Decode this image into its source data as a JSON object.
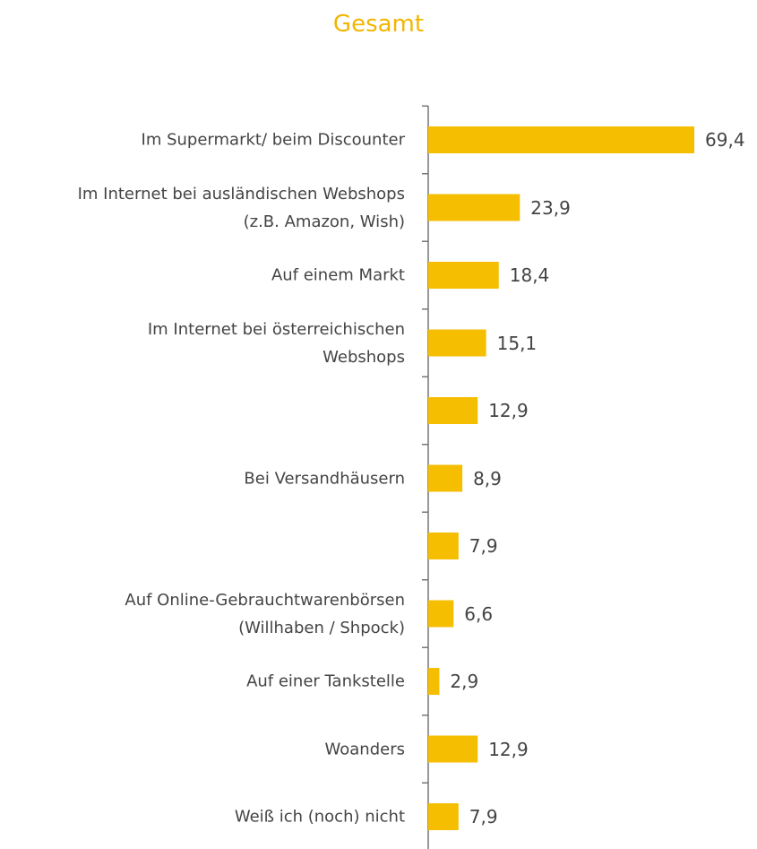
{
  "chart_data": {
    "type": "bar",
    "orientation": "horizontal",
    "title": "Gesamt",
    "categories": [
      "Im Supermarkt/ beim Discounter",
      "Im Internet bei ausländischen Webshops\n(z.B. Amazon, Wish)",
      "Auf einem Markt",
      "Im Internet bei österreichischen\nWebshops",
      null,
      "Bei Versandhäusern",
      null,
      "Auf Online-Gebrauchtwarenbörsen\n(Willhaben / Shpock)",
      "Auf einer Tankstelle",
      "Woanders",
      "Weiß ich (noch) nicht"
    ],
    "values": [
      69.4,
      23.9,
      18.4,
      15.1,
      12.9,
      8.9,
      7.9,
      6.6,
      2.9,
      12.9,
      7.9
    ],
    "value_labels": [
      "69,4",
      "23,9",
      "18,4",
      "15,1",
      "12,9",
      "8,9",
      "7,9",
      "6,6",
      "2,9",
      "12,9",
      "7,9"
    ],
    "color": "#f5be00"
  }
}
